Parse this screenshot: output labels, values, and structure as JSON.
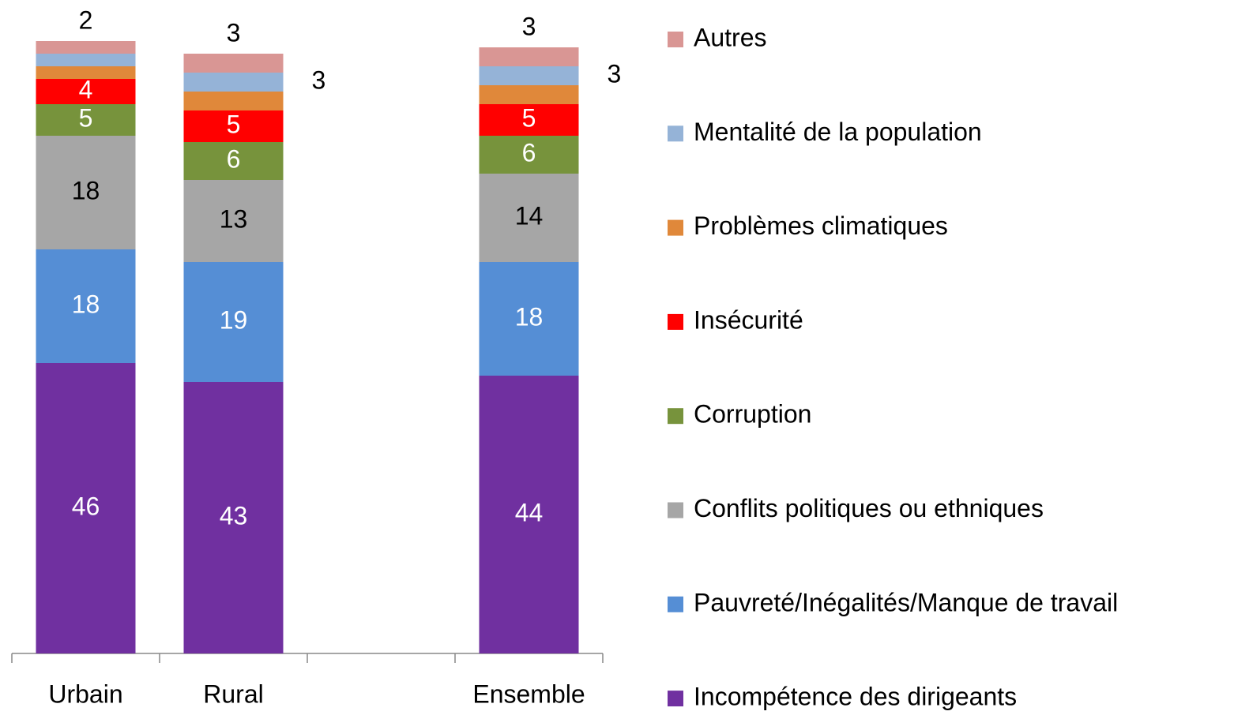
{
  "chart_data": {
    "type": "stacked_bar",
    "categories": [
      "Urbain",
      "Rural",
      null,
      "Ensemble"
    ],
    "ylim": [
      0,
      100
    ],
    "series": [
      {
        "name": "Incompétence des dirigeants",
        "color": "#7030a0",
        "label_color": "#ffffff",
        "values": [
          46,
          43,
          null,
          44
        ],
        "value_labels": [
          "46",
          "43",
          null,
          "44"
        ]
      },
      {
        "name": "Pauvreté/Inégalités/Manque de travail",
        "color": "#558ed5",
        "label_color": "#ffffff",
        "values": [
          18,
          19,
          null,
          18
        ],
        "value_labels": [
          "18",
          "19",
          null,
          "18"
        ]
      },
      {
        "name": "Conflits politiques ou ethniques",
        "color": "#a6a6a6",
        "label_color": "#000000",
        "values": [
          18,
          13,
          null,
          14
        ],
        "value_labels": [
          "18",
          "13",
          null,
          "14"
        ]
      },
      {
        "name": "Corruption",
        "color": "#77933c",
        "label_color": "#ffffff",
        "values": [
          5,
          6,
          null,
          6
        ],
        "value_labels": [
          "5",
          "6",
          null,
          "6"
        ]
      },
      {
        "name": "Insécurité",
        "color": "#ff0000",
        "label_color": "#ffffff",
        "values": [
          4,
          5,
          null,
          5
        ],
        "value_labels": [
          "4",
          "5",
          null,
          "5"
        ]
      },
      {
        "name": "Problèmes climatiques",
        "color": "#e0883a",
        "label_color": "#000000",
        "values": [
          2,
          3,
          null,
          3
        ],
        "value_labels": [
          null,
          null,
          null,
          null
        ]
      },
      {
        "name": "Mentalité de la population",
        "color": "#95b3d7",
        "label_color": "#000000",
        "values": [
          2,
          3,
          null,
          3
        ],
        "value_labels": [
          null,
          "3",
          null,
          "3"
        ]
      },
      {
        "name": "Autres",
        "color": "#d99694",
        "label_color": "#000000",
        "values": [
          2,
          3,
          null,
          3
        ],
        "value_labels": [
          "2",
          "3",
          null,
          "3"
        ]
      }
    ]
  }
}
